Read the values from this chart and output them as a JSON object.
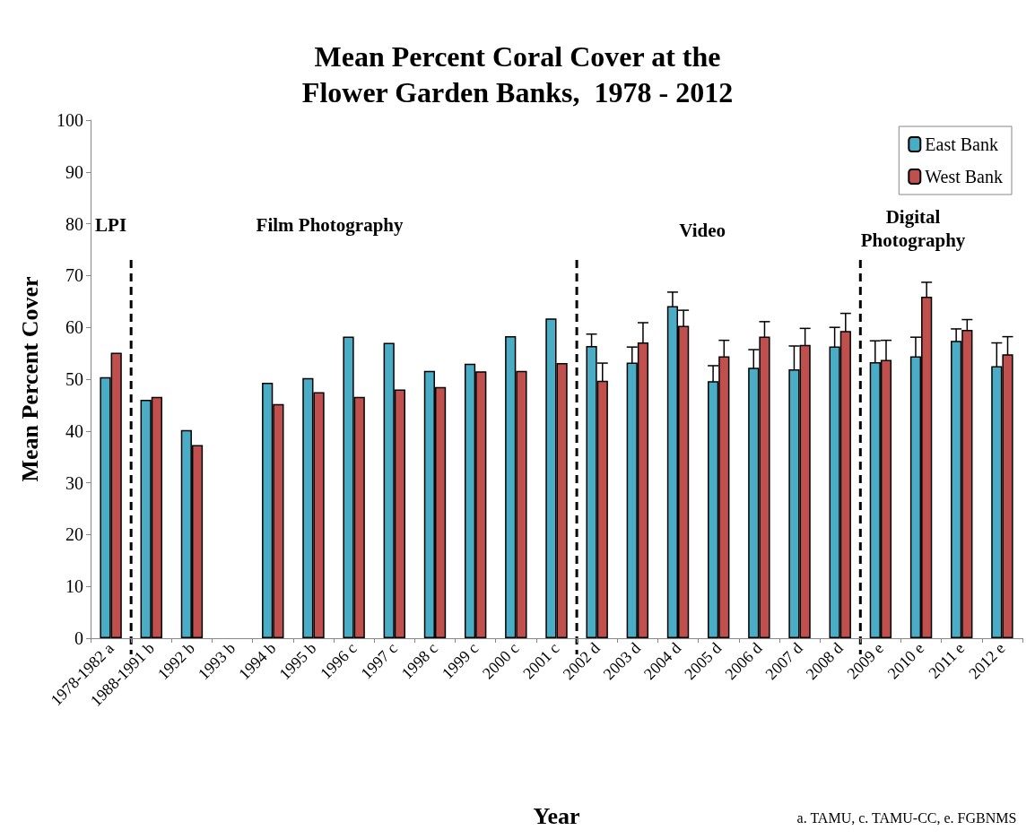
{
  "chart_data": {
    "type": "bar",
    "title": "Mean Percent Coral Cover at the\nFlower Garden Banks,  1978 - 2012",
    "xlabel": "Year",
    "ylabel": "Mean Percent Cover",
    "categories": [
      "1978-1982 a",
      "1988-1991 b",
      "1992 b",
      "1993 b",
      "1994 b",
      "1995 b",
      "1996 c",
      "1997 c",
      "1998 c",
      "1999 c",
      "2000 c",
      "2001 c",
      "2002 d",
      "2003 d",
      "2004 d",
      "2005 d",
      "2006 d",
      "2007 d",
      "2008 d",
      "2009 e",
      "2010 e",
      "2011 e",
      "2012 e"
    ],
    "series": [
      {
        "name": "East Bank",
        "color": "#4bacc6",
        "values": [
          50.4,
          46.0,
          40.2,
          null,
          49.3,
          50.2,
          58.2,
          57.0,
          51.6,
          53.0,
          58.3,
          61.7,
          56.4,
          53.2,
          64.1,
          49.6,
          52.2,
          51.9,
          56.3,
          53.3,
          54.4,
          57.4,
          52.5
        ],
        "errors": [
          null,
          null,
          null,
          null,
          null,
          null,
          null,
          null,
          null,
          null,
          null,
          null,
          2.3,
          3.0,
          2.7,
          3.0,
          3.5,
          4.5,
          3.7,
          4.1,
          3.7,
          2.3,
          4.5
        ]
      },
      {
        "name": "West Bank",
        "color": "#c0504d",
        "values": [
          55.1,
          46.6,
          37.3,
          null,
          45.2,
          47.5,
          46.6,
          48.0,
          48.5,
          51.5,
          51.6,
          53.1,
          49.7,
          57.1,
          60.3,
          54.4,
          58.2,
          56.6,
          59.3,
          53.7,
          65.9,
          59.5,
          54.8
        ],
        "errors": [
          null,
          null,
          null,
          null,
          null,
          null,
          null,
          null,
          null,
          null,
          null,
          null,
          3.4,
          3.8,
          3.0,
          3.1,
          2.9,
          3.2,
          3.4,
          3.8,
          2.8,
          2.0,
          3.4
        ]
      }
    ],
    "ylim": [
      0,
      100
    ],
    "yticks": [
      0,
      10,
      20,
      30,
      40,
      50,
      60,
      70,
      80,
      90,
      100
    ],
    "grid": false,
    "legend": "top right",
    "annotations": [
      "LPI",
      "Film Photography",
      "Video",
      "Digital\nPhotography",
      "a. TAMU, c. TAMU-CC, e. FGBNMS"
    ]
  }
}
